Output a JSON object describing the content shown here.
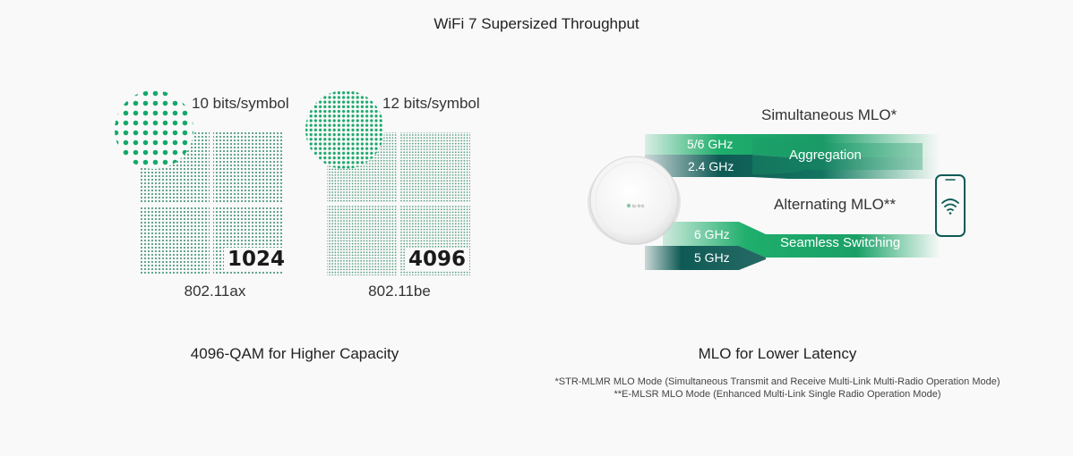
{
  "title": "WiFi 7 Supersized Throughput",
  "qam": {
    "left": {
      "bits_label": "10 bits/symbol",
      "value": "1024",
      "standard": "802.11ax"
    },
    "right": {
      "bits_label": "12 bits/symbol",
      "value": "4096",
      "standard": "802.11be"
    },
    "caption": "4096-QAM for Higher Capacity"
  },
  "mlo": {
    "simultaneous_label": "Simultaneous MLO*",
    "alternating_label": "Alternating MLO**",
    "bands_top": [
      "5/6 GHz",
      "2.4 GHz"
    ],
    "aggregation_label": "Aggregation",
    "bands_bottom": [
      "6 GHz",
      "5 GHz"
    ],
    "switching_label": "Seamless Switching",
    "caption": "MLO for Lower Latency",
    "footnote": "*STR-MLMR MLO Mode (Simultaneous Transmit and Receive Multi-Link Multi-Radio Operation Mode) **E-MLSR MLO Mode (Enhanced Multi-Link Single Radio Operation Mode)",
    "device_logo": "tp-link"
  },
  "colors": {
    "green": "#1fa86a",
    "dark_teal": "#0f5a55",
    "mid_green": "#178f63"
  }
}
